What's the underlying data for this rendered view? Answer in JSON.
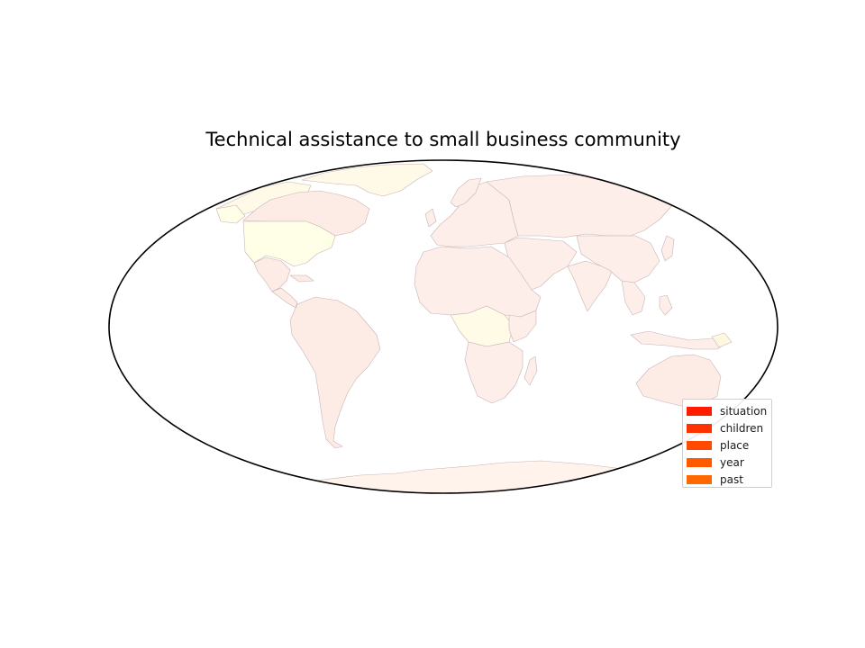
{
  "title": "Technical assistance to small business community",
  "legend": {
    "items": [
      {
        "label": "situation",
        "color": "#ff1a00"
      },
      {
        "label": "children",
        "color": "#ff3300"
      },
      {
        "label": "place",
        "color": "#ff4a00"
      },
      {
        "label": "year",
        "color": "#ff5a00"
      },
      {
        "label": "past",
        "color": "#ff6a00"
      }
    ]
  },
  "map": {
    "projection": "mollweide",
    "colors": {
      "ocean": "#ffffff",
      "land_default": "#fdeeea",
      "north_america": "#fdebe6",
      "usa": "#ffffe8",
      "canada_arctic": "#fff9e8",
      "central_africa": "#fffbe6",
      "southern_africa": "#fff3e8",
      "antarctica": "#fff3ec",
      "border": "#c8b4b4",
      "frame": "#000000"
    }
  }
}
